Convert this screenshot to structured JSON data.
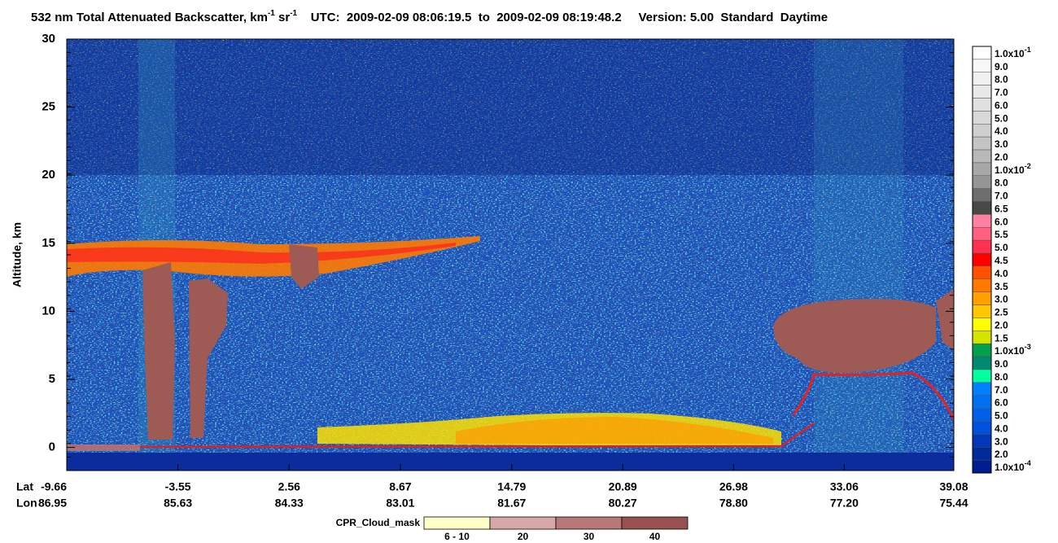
{
  "chart_data": {
    "type": "heatmap",
    "title": {
      "text": "532 nm Total Attenuated Backscatter, km",
      "sup1": "-1",
      "text2": " sr",
      "sup2": "-1",
      "text3": "    UTC:  2009-02-09 08:06:19.5  to  2009-02-09 08:19:48.2     Version: 5.00  Standard  Daytime"
    },
    "ylabel": "Altitude, km",
    "ylim": [
      -1.7,
      30
    ],
    "yticks": [
      0,
      5,
      10,
      15,
      20,
      25,
      30
    ],
    "x_row_labels": [
      "Lat",
      "Lon"
    ],
    "xlim": [
      -9.66,
      39.08
    ],
    "xticks": [
      -9.66,
      -3.55,
      2.56,
      8.67,
      14.79,
      20.89,
      26.98,
      33.06,
      39.08
    ],
    "lon_labels": [
      "86.95",
      "85.63",
      "84.33",
      "83.01",
      "81.67",
      "80.27",
      "78.80",
      "77.20",
      "75.44"
    ],
    "colorbar": [
      {
        "label": "1.0x10",
        "exponent": "-1",
        "color": "#ffffff"
      },
      {
        "label": "9.0",
        "color": "#f8f8f8"
      },
      {
        "label": "8.0",
        "color": "#f0f0f0"
      },
      {
        "label": "7.0",
        "color": "#e8e8e8"
      },
      {
        "label": "6.0",
        "color": "#e0e0e0"
      },
      {
        "label": "5.0",
        "color": "#d8d8d8"
      },
      {
        "label": "4.0",
        "color": "#cfcfcf"
      },
      {
        "label": "3.0",
        "color": "#c4c4c4"
      },
      {
        "label": "2.0",
        "color": "#b8b8b8"
      },
      {
        "label": "1.0x10",
        "exponent": "-2",
        "color": "#a8a8a8"
      },
      {
        "label": "8.0",
        "color": "#969696"
      },
      {
        "label": "7.0",
        "color": "#6e6e6e"
      },
      {
        "label": "6.5",
        "color": "#484848"
      },
      {
        "label": "6.0",
        "color": "#ff80a0"
      },
      {
        "label": "5.5",
        "color": "#ff6080"
      },
      {
        "label": "5.0",
        "color": "#ff3050"
      },
      {
        "label": "4.5",
        "color": "#ff0000"
      },
      {
        "label": "4.0",
        "color": "#ff5000"
      },
      {
        "label": "3.5",
        "color": "#ff7800"
      },
      {
        "label": "3.0",
        "color": "#ffa000"
      },
      {
        "label": "2.5",
        "color": "#ffc800"
      },
      {
        "label": "2.0",
        "color": "#ffff00"
      },
      {
        "label": "1.5",
        "color": "#d4e400"
      },
      {
        "label": "1.0x10",
        "exponent": "-3",
        "color": "#00a050"
      },
      {
        "label": "9.0",
        "color": "#008870"
      },
      {
        "label": "8.0",
        "color": "#00ffa0"
      },
      {
        "label": "7.0",
        "color": "#0080ff"
      },
      {
        "label": "6.0",
        "color": "#0070f0"
      },
      {
        "label": "5.0",
        "color": "#0060e8"
      },
      {
        "label": "4.0",
        "color": "#0050e0"
      },
      {
        "label": "3.0",
        "color": "#0038b8"
      },
      {
        "label": "2.0",
        "color": "#002a98"
      },
      {
        "label": "1.0x10",
        "exponent": "-4",
        "color": "#001c90"
      }
    ],
    "cloud_mask": {
      "label": "CPR_Cloud_mask",
      "entries": [
        {
          "label": "6 - 10",
          "color": "#ffffc8"
        },
        {
          "label": "20",
          "color": "#d8a8a8"
        },
        {
          "label": "30",
          "color": "#b87878"
        },
        {
          "label": "40",
          "color": "#985050"
        }
      ]
    }
  }
}
